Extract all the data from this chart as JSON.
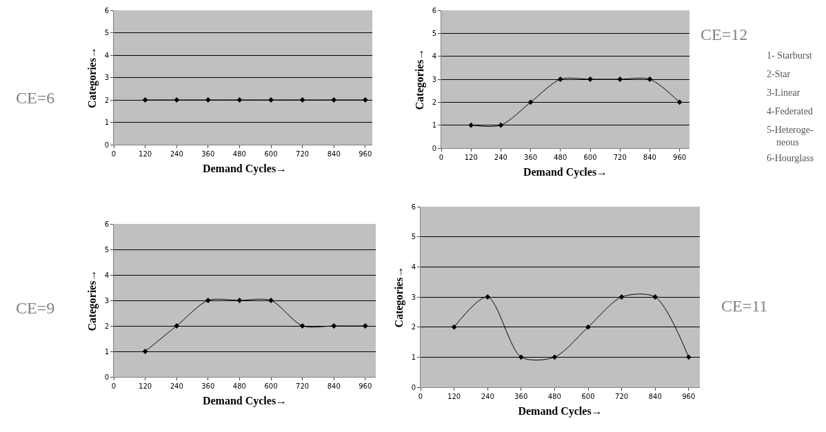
{
  "chart_data": [
    {
      "type": "line",
      "xlabel": "Demand Cycles→",
      "ylabel": "Categories→",
      "x": [
        120,
        240,
        360,
        480,
        600,
        720,
        840,
        960
      ],
      "series": [
        {
          "color": "#000000",
          "values": [
            2,
            2,
            2,
            2,
            2,
            2,
            2,
            2
          ]
        }
      ],
      "xlim": [
        0,
        1000
      ],
      "xticks": [
        0,
        120,
        240,
        360,
        480,
        600,
        720,
        840,
        960
      ],
      "ylim": [
        0,
        6
      ],
      "yticks": [
        0,
        1,
        2,
        3,
        4,
        5,
        6
      ],
      "grid": "y",
      "marker": "diamond",
      "line_style": "solid",
      "annotations": [
        "CE=6"
      ]
    },
    {
      "type": "line",
      "xlabel": "Demand Cycles→",
      "ylabel": "Categories→",
      "x": [
        120,
        240,
        360,
        480,
        600,
        720,
        840,
        960
      ],
      "series": [
        {
          "color": "#000000",
          "values": [
            1,
            1,
            2,
            3,
            3,
            3,
            3,
            2
          ]
        }
      ],
      "xlim": [
        0,
        1000
      ],
      "xticks": [
        0,
        120,
        240,
        360,
        480,
        600,
        720,
        840,
        960
      ],
      "ylim": [
        0,
        6
      ],
      "yticks": [
        0,
        1,
        2,
        3,
        4,
        5,
        6
      ],
      "grid": "y",
      "marker": "diamond",
      "line_style": "solid",
      "annotations": [
        "CE=12",
        "1- Starburst",
        "2-Star",
        "3-Linear",
        "4-Federated",
        "5-Heteroge-\n    neous",
        "6-Hourglass"
      ]
    },
    {
      "type": "line",
      "xlabel": "Demand Cycles→",
      "ylabel": "Categories→",
      "x": [
        120,
        240,
        360,
        480,
        600,
        720,
        840,
        960
      ],
      "series": [
        {
          "color": "#000000",
          "values": [
            1,
            2,
            3,
            3,
            3,
            2,
            2,
            2
          ]
        }
      ],
      "xlim": [
        0,
        1000
      ],
      "xticks": [
        0,
        120,
        240,
        360,
        480,
        600,
        720,
        840,
        960
      ],
      "ylim": [
        0,
        6
      ],
      "yticks": [
        0,
        1,
        2,
        3,
        4,
        5,
        6
      ],
      "grid": "y",
      "marker": "diamond",
      "line_style": "solid",
      "annotations": [
        "CE=9"
      ]
    },
    {
      "type": "line",
      "xlabel": "Demand Cycles→",
      "ylabel": "Categories→",
      "x": [
        120,
        240,
        360,
        480,
        600,
        720,
        840,
        960
      ],
      "series": [
        {
          "color": "#000000",
          "values": [
            2,
            3,
            1,
            1,
            2,
            3,
            3,
            1
          ]
        }
      ],
      "xlim": [
        0,
        1000
      ],
      "xticks": [
        0,
        120,
        240,
        360,
        480,
        600,
        720,
        840,
        960
      ],
      "ylim": [
        0,
        6
      ],
      "yticks": [
        0,
        1,
        2,
        3,
        4,
        5,
        6
      ],
      "grid": "y",
      "marker": "diamond",
      "line_style": "solid",
      "annotations": [
        "CE=11"
      ]
    }
  ]
}
